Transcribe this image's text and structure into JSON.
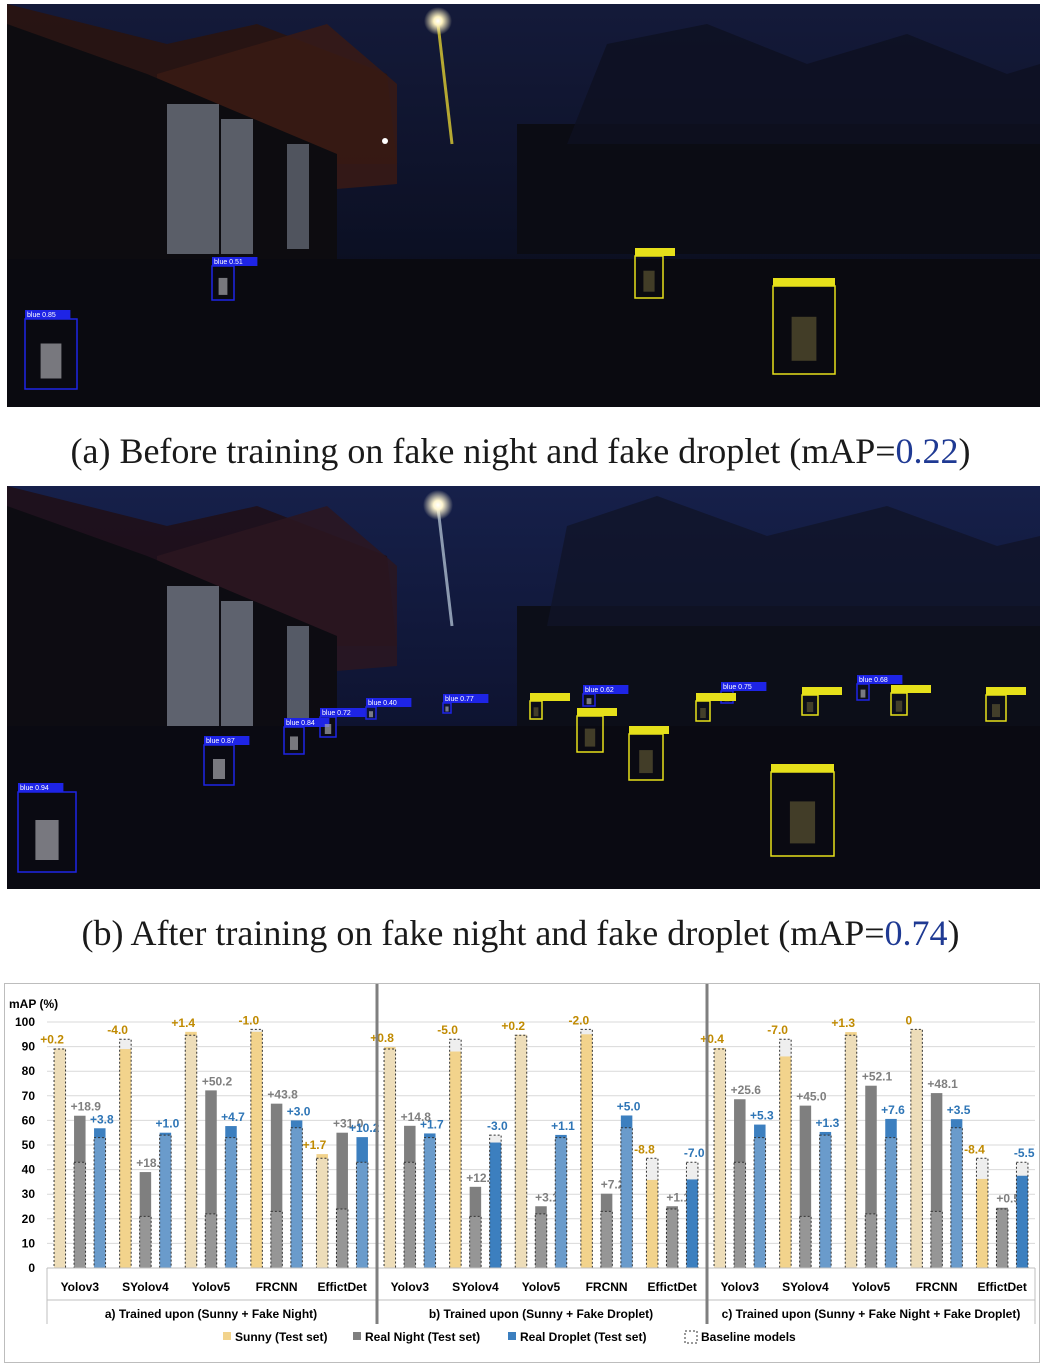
{
  "photos": {
    "before": {
      "detections": [
        {
          "label": "blue 0.85",
          "cls": "blue"
        },
        {
          "label": "blue 0.51",
          "cls": "blue"
        },
        {
          "label": "",
          "cls": "yellow"
        },
        {
          "label": "",
          "cls": "yellow"
        }
      ]
    },
    "after": {
      "detections": [
        {
          "label": "blue 0.94",
          "cls": "blue"
        },
        {
          "label": "blue 0.87",
          "cls": "blue"
        },
        {
          "label": "blue 0.84",
          "cls": "blue"
        },
        {
          "label": "blue 0.72",
          "cls": "blue"
        },
        {
          "label": "blue 0.40",
          "cls": "blue"
        },
        {
          "label": "blue 0.77",
          "cls": "blue"
        },
        {
          "label": "blue 0.62",
          "cls": "blue"
        },
        {
          "label": "blue 0.75",
          "cls": "blue"
        },
        {
          "label": "blue 0.68",
          "cls": "blue"
        },
        {
          "label": "",
          "cls": "yellow"
        },
        {
          "label": "",
          "cls": "yellow"
        },
        {
          "label": "",
          "cls": "yellow"
        },
        {
          "label": "",
          "cls": "yellow"
        },
        {
          "label": "",
          "cls": "yellow"
        },
        {
          "label": "",
          "cls": "yellow"
        },
        {
          "label": "",
          "cls": "yellow"
        },
        {
          "label": "",
          "cls": "yellow"
        }
      ]
    }
  },
  "captions": {
    "a": {
      "prefix": "(a) Before training on fake night and fake droplet (mAP=",
      "value": "0.22",
      "suffix": ")"
    },
    "b": {
      "prefix": "(b) After training on fake night and fake droplet (mAP=",
      "value": "0.74",
      "suffix": ")"
    }
  },
  "colors": {
    "sunny": "#f2d38c",
    "night": "#7f7f7f",
    "droplet": "#3c7fbf",
    "sunny_text": "#c08a00",
    "night_text": "#7f7f7f",
    "droplet_text": "#2e75b6",
    "blue_box": "#1e24e6",
    "yellow_box": "#e6e01a"
  },
  "chart_data": {
    "type": "bar",
    "ylabel": "mAP (%)",
    "ylim": [
      0,
      100
    ],
    "yticks": [
      0,
      10,
      20,
      30,
      40,
      50,
      60,
      70,
      80,
      90,
      100
    ],
    "grid": true,
    "legend": {
      "position": "bottom",
      "entries": [
        "Sunny (Test set)",
        "Real Night (Test set)",
        "Real Droplet (Test set)",
        "Baseline models"
      ]
    },
    "series": [
      {
        "name": "Sunny (Test set)"
      },
      {
        "name": "Real Night (Test set)"
      },
      {
        "name": "Real Droplet (Test set)"
      }
    ],
    "groups": [
      {
        "label": "a) Trained upon (Sunny + Fake Night)",
        "models": [
          {
            "name": "Yolov3",
            "baseline": [
              89,
              43,
              53
            ],
            "value": [
              89.2,
              61.9,
              56.8
            ],
            "delta": [
              "+0.2",
              "+18.9",
              "+3.8"
            ]
          },
          {
            "name": "SYolov4",
            "baseline": [
              93,
              21,
              54
            ],
            "value": [
              89,
              39,
              55
            ],
            "delta": [
              "-4.0",
              "+18.0",
              "+1.0"
            ]
          },
          {
            "name": "Yolov5",
            "baseline": [
              94.6,
              22,
              53
            ],
            "value": [
              96,
              72.2,
              57.7
            ],
            "delta": [
              "+1.4",
              "+50.2",
              "+4.7"
            ]
          },
          {
            "name": "FRCNN",
            "baseline": [
              97,
              23,
              57
            ],
            "value": [
              96,
              66.8,
              60
            ],
            "delta": [
              "-1.0",
              "+43.8",
              "+3.0"
            ]
          },
          {
            "name": "EffictDet",
            "baseline": [
              44.6,
              24,
              43
            ],
            "value": [
              46.3,
              55,
              53.2
            ],
            "delta": [
              "+1.7",
              "+31.0",
              "+10.2"
            ]
          }
        ]
      },
      {
        "label": "b) Trained upon (Sunny + Fake Droplet)",
        "models": [
          {
            "name": "Yolov3",
            "baseline": [
              89,
              43,
              53
            ],
            "value": [
              89.8,
              57.8,
              54.7
            ],
            "delta": [
              "+0.8",
              "+14.8",
              "+1.7"
            ]
          },
          {
            "name": "SYolov4",
            "baseline": [
              93,
              21,
              54
            ],
            "value": [
              88,
              33,
              51
            ],
            "delta": [
              "-5.0",
              "+12.0",
              "-3.0"
            ]
          },
          {
            "name": "Yolov5",
            "baseline": [
              94.6,
              22,
              53
            ],
            "value": [
              94.8,
              25.1,
              54.1
            ],
            "delta": [
              "+0.2",
              "+3.1",
              "+1.1"
            ]
          },
          {
            "name": "FRCNN",
            "baseline": [
              97,
              23,
              57
            ],
            "value": [
              95,
              30.2,
              62
            ],
            "delta": [
              "-2.0",
              "+7.2",
              "+5.0"
            ]
          },
          {
            "name": "EffictDet",
            "baseline": [
              44.6,
              24,
              43
            ],
            "value": [
              35.8,
              25.1,
              36
            ],
            "delta": [
              "-8.8",
              "+1.1",
              "-7.0"
            ]
          }
        ]
      },
      {
        "label": "c) Trained upon (Sunny + Fake Night + Fake Droplet)",
        "models": [
          {
            "name": "Yolov3",
            "baseline": [
              89,
              43,
              53
            ],
            "value": [
              89.4,
              68.6,
              58.3
            ],
            "delta": [
              "+0.4",
              "+25.6",
              "+5.3"
            ]
          },
          {
            "name": "SYolov4",
            "baseline": [
              93,
              21,
              54
            ],
            "value": [
              86,
              66,
              55.3
            ],
            "delta": [
              "-7.0",
              "+45.0",
              "+1.3"
            ]
          },
          {
            "name": "Yolov5",
            "baseline": [
              94.6,
              22,
              53
            ],
            "value": [
              95.9,
              74.1,
              60.6
            ],
            "delta": [
              "+1.3",
              "+52.1",
              "+7.6"
            ]
          },
          {
            "name": "FRCNN",
            "baseline": [
              97,
              23,
              57
            ],
            "value": [
              97,
              71.1,
              60.5
            ],
            "delta": [
              "0",
              "+48.1",
              "+3.5"
            ]
          },
          {
            "name": "EffictDet",
            "baseline": [
              44.6,
              24,
              43
            ],
            "value": [
              36.2,
              24.5,
              37.5
            ],
            "delta": [
              "-8.4",
              "+0.5",
              "-5.5"
            ]
          }
        ]
      }
    ]
  }
}
